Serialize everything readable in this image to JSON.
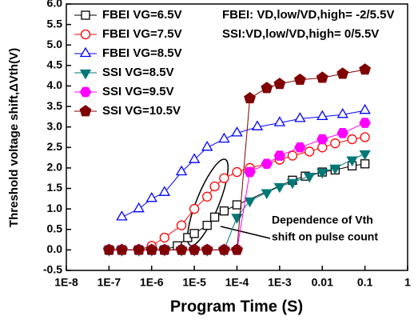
{
  "chart_data": {
    "type": "line",
    "xlog": true,
    "xlabel": "Program Time (S)",
    "ylabel": "Threshold voltage shift,ΔVth(V)",
    "xlim": [
      1e-08,
      1
    ],
    "ylim": [
      -0.5,
      6.0
    ],
    "xticks": [
      {
        "value": 1e-08,
        "label": "1E-8"
      },
      {
        "value": 1e-07,
        "label": "1E-7"
      },
      {
        "value": 1e-06,
        "label": "1E-6"
      },
      {
        "value": 1e-05,
        "label": "1E-5"
      },
      {
        "value": 0.0001,
        "label": "1E-4"
      },
      {
        "value": 0.001,
        "label": "1E-3"
      },
      0.01,
      0.1,
      1
    ],
    "yticks": [
      -0.5,
      {
        "value": 0,
        "label": "0.0"
      },
      0.5,
      {
        "value": 1,
        "label": "1.0"
      },
      1.5,
      {
        "value": 2,
        "label": "2.0"
      },
      2.5,
      {
        "value": 3,
        "label": "3.0"
      },
      3.5,
      {
        "value": 4,
        "label": "4.0"
      },
      4.5,
      {
        "value": 5,
        "label": "5.0"
      },
      5.5,
      {
        "value": 6,
        "label": "6.0"
      }
    ],
    "annotations": [
      "FBEI: VD,low/VD,high= -2/5.5V",
      "SSI:VD,low/VD,high= 0/5.5V",
      "Dependence of Vth",
      "shift on pulse count"
    ],
    "series": [
      {
        "name": "FBEI VG=6.5V",
        "color": "#000000",
        "marker": "square",
        "filled": false,
        "x": [
          1e-07,
          2e-07,
          5e-07,
          1e-06,
          2e-06,
          4e-06,
          7e-06,
          1e-05,
          2e-05,
          3e-05,
          5e-05,
          0.0001,
          0.002,
          0.004,
          0.01,
          0.02,
          0.05,
          0.1
        ],
        "values": [
          0,
          0,
          0,
          0,
          0,
          0.1,
          0.3,
          0.4,
          0.6,
          0.8,
          0.95,
          1.1,
          1.7,
          1.8,
          1.9,
          1.95,
          2.05,
          2.1
        ]
      },
      {
        "name": "FBEI VG=7.5V",
        "color": "#ff0000",
        "marker": "circle",
        "filled": false,
        "x": [
          1e-07,
          2e-07,
          5e-07,
          1e-06,
          2e-06,
          5e-06,
          1e-05,
          2e-05,
          3e-05,
          5e-05,
          0.0001,
          0.0002,
          0.0005,
          0.001,
          0.002,
          0.005,
          0.01,
          0.02,
          0.05,
          0.1
        ],
        "values": [
          0,
          0,
          0,
          0.1,
          0.3,
          0.6,
          1.0,
          1.3,
          1.55,
          1.75,
          1.9,
          2.0,
          2.1,
          2.2,
          2.3,
          2.4,
          2.5,
          2.6,
          2.7,
          2.75
        ]
      },
      {
        "name": "FBEI VG=8.5V",
        "color": "#0000ff",
        "marker": "triangle",
        "filled": false,
        "x": [
          2e-07,
          5e-07,
          1e-06,
          2e-06,
          5e-06,
          1e-05,
          2e-05,
          5e-05,
          0.0001,
          0.0003,
          0.001,
          0.003,
          0.01,
          0.03,
          0.1
        ],
        "values": [
          0.8,
          1.0,
          1.25,
          1.4,
          1.9,
          2.2,
          2.5,
          2.7,
          2.85,
          3.0,
          3.1,
          3.2,
          3.25,
          3.3,
          3.4
        ]
      },
      {
        "name": "SSI VG=8.5V",
        "color": "#007878",
        "marker": "down",
        "filled": true,
        "x": [
          1e-07,
          2e-07,
          5e-07,
          1e-06,
          2e-06,
          5e-06,
          1e-05,
          2e-05,
          5e-05,
          0.0001,
          0.0002,
          0.0005,
          0.001,
          0.002,
          0.005,
          0.01,
          0.02,
          0.05,
          0.1
        ],
        "values": [
          0,
          0,
          0,
          0,
          0,
          0,
          0,
          0,
          0,
          0.8,
          1.2,
          1.4,
          1.55,
          1.65,
          1.8,
          1.9,
          2.0,
          2.2,
          2.35
        ]
      },
      {
        "name": "SSI VG=9.5V",
        "color": "#ff00ff",
        "marker": "hexagon",
        "filled": true,
        "x": [
          1e-07,
          2e-07,
          5e-07,
          1e-06,
          2e-06,
          5e-06,
          1e-05,
          2e-05,
          5e-05,
          0.0001,
          0.0002,
          0.0005,
          0.001,
          0.003,
          0.01,
          0.03,
          0.1
        ],
        "values": [
          0,
          0,
          0,
          0,
          0,
          0,
          0,
          0,
          0,
          0,
          1.9,
          2.1,
          2.3,
          2.5,
          2.7,
          2.85,
          3.1
        ]
      },
      {
        "name": "SSI VG=10.5V",
        "color": "#800000",
        "marker": "pentagon",
        "filled": true,
        "x": [
          1e-07,
          2e-07,
          5e-07,
          1e-06,
          2e-06,
          5e-06,
          1e-05,
          2e-05,
          5e-05,
          0.0001,
          0.0002,
          0.0005,
          0.001,
          0.003,
          0.01,
          0.03,
          0.1
        ],
        "values": [
          0,
          0,
          0,
          0,
          0,
          0,
          0,
          0,
          0,
          0,
          3.7,
          3.95,
          4.05,
          4.15,
          4.2,
          4.3,
          4.4
        ]
      }
    ]
  }
}
